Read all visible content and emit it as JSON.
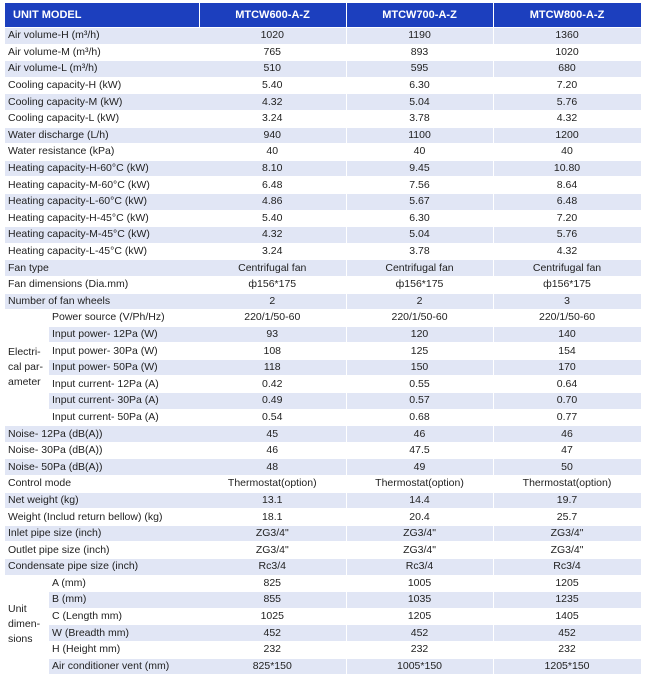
{
  "header": {
    "unit": "UNIT MODEL",
    "models": [
      "MTCW600-A-Z",
      "MTCW700-A-Z",
      "MTCW800-A-Z"
    ]
  },
  "rows_top": [
    {
      "label": "Air volume-H (m³/h)",
      "values": [
        "1020",
        "1190",
        "1360"
      ]
    },
    {
      "label": "Air volume-M (m³/h)",
      "values": [
        "765",
        "893",
        "1020"
      ]
    },
    {
      "label": "Air volume-L (m³/h)",
      "values": [
        "510",
        "595",
        "680"
      ]
    },
    {
      "label": "Cooling capacity-H (kW)",
      "values": [
        "5.40",
        "6.30",
        "7.20"
      ]
    },
    {
      "label": "Cooling capacity-M (kW)",
      "values": [
        "4.32",
        "5.04",
        "5.76"
      ]
    },
    {
      "label": "Cooling capacity-L (kW)",
      "values": [
        "3.24",
        "3.78",
        "4.32"
      ]
    },
    {
      "label": "Water discharge (L/h)",
      "values": [
        "940",
        "1100",
        "1200"
      ]
    },
    {
      "label": "Water resistance (kPa)",
      "values": [
        "40",
        "40",
        "40"
      ]
    },
    {
      "label": "Heating capacity-H-60°C (kW)",
      "values": [
        "8.10",
        "9.45",
        "10.80"
      ]
    },
    {
      "label": "Heating capacity-M-60°C (kW)",
      "values": [
        "6.48",
        "7.56",
        "8.64"
      ]
    },
    {
      "label": "Heating capacity-L-60°C (kW)",
      "values": [
        "4.86",
        "5.67",
        "6.48"
      ]
    },
    {
      "label": "Heating capacity-H-45°C (kW)",
      "values": [
        "5.40",
        "6.30",
        "7.20"
      ]
    },
    {
      "label": "Heating capacity-M-45°C (kW)",
      "values": [
        "4.32",
        "5.04",
        "5.76"
      ]
    },
    {
      "label": "Heating capacity-L-45°C (kW)",
      "values": [
        "3.24",
        "3.78",
        "4.32"
      ]
    },
    {
      "label": "Fan type",
      "values": [
        "Centrifugal fan",
        "Centrifugal fan",
        "Centrifugal fan"
      ]
    },
    {
      "label": "Fan dimensions (Dia.mm)",
      "values": [
        "ф156*175",
        "ф156*175",
        "ф156*175"
      ]
    },
    {
      "label": "Number of fan wheels",
      "values": [
        "2",
        "2",
        "3"
      ]
    }
  ],
  "electrical": {
    "group_label": "Electri-cal par-ameter",
    "group_lines": [
      "Electri-",
      "cal par-",
      "ameter"
    ],
    "rows": [
      {
        "label": "Power source (V/Ph/Hz)",
        "values": [
          "220/1/50-60",
          "220/1/50-60",
          "220/1/50-60"
        ]
      },
      {
        "label": "Input power- 12Pa (W)",
        "values": [
          "93",
          "120",
          "140"
        ]
      },
      {
        "label": "Input power- 30Pa (W)",
        "values": [
          "108",
          "125",
          "154"
        ]
      },
      {
        "label": "Input power- 50Pa (W)",
        "values": [
          "118",
          "150",
          "170"
        ]
      },
      {
        "label": "Input current- 12Pa (A)",
        "values": [
          "0.42",
          "0.55",
          "0.64"
        ]
      },
      {
        "label": "Input current- 30Pa (A)",
        "values": [
          "0.49",
          "0.57",
          "0.70"
        ]
      },
      {
        "label": "Input current- 50Pa (A)",
        "values": [
          "0.54",
          "0.68",
          "0.77"
        ]
      }
    ]
  },
  "rows_mid": [
    {
      "label": "Noise- 12Pa (dB(A))",
      "values": [
        "45",
        "46",
        "46"
      ]
    },
    {
      "label": "Noise- 30Pa (dB(A))",
      "values": [
        "46",
        "47.5",
        "47"
      ]
    },
    {
      "label": "Noise- 50Pa (dB(A))",
      "values": [
        "48",
        "49",
        "50"
      ]
    },
    {
      "label": "Control mode",
      "values": [
        "Thermostat(option)",
        "Thermostat(option)",
        "Thermostat(option)"
      ]
    },
    {
      "label": "Net weight (kg)",
      "values": [
        "13.1",
        "14.4",
        "19.7"
      ]
    },
    {
      "label": "Weight (Includ return bellow) (kg)",
      "values": [
        "18.1",
        "20.4",
        "25.7"
      ]
    },
    {
      "label": "Inlet pipe size (inch)",
      "values": [
        "ZG3/4\"",
        "ZG3/4\"",
        "ZG3/4\""
      ]
    },
    {
      "label": "Outlet pipe size (inch)",
      "values": [
        "ZG3/4\"",
        "ZG3/4\"",
        "ZG3/4\""
      ]
    },
    {
      "label": "Condensate pipe size (inch)",
      "values": [
        "Rc3/4",
        "Rc3/4",
        "Rc3/4"
      ]
    }
  ],
  "dimensions": {
    "group_label": "Unit dimen-sions",
    "group_lines": [
      "Unit",
      "dimen-",
      "sions"
    ],
    "rows": [
      {
        "label": "A (mm)",
        "values": [
          "825",
          "1005",
          "1205"
        ]
      },
      {
        "label": "B (mm)",
        "values": [
          "855",
          "1035",
          "1235"
        ]
      },
      {
        "label": "C (Length mm)",
        "values": [
          "1025",
          "1205",
          "1405"
        ]
      },
      {
        "label": "W (Breadth mm)",
        "values": [
          "452",
          "452",
          "452"
        ]
      },
      {
        "label": "H (Height mm)",
        "values": [
          "232",
          "232",
          "232"
        ]
      },
      {
        "label": "Air conditioner vent (mm)",
        "values": [
          "825*150",
          "1005*150",
          "1205*150"
        ]
      }
    ]
  },
  "colors": {
    "header_bg": "#1c3fbe",
    "row_shade": "#e1e6f5"
  }
}
